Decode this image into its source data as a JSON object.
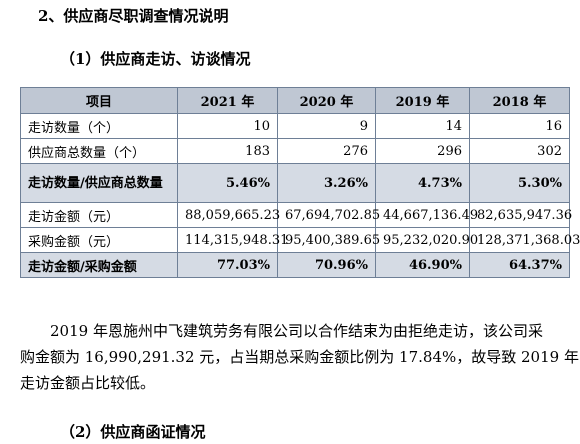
{
  "headings": {
    "section": "2、供应商尽职调查情况说明",
    "sub1": "（1）供应商走访、访谈情况",
    "sub2": "（2）供应商函证情况"
  },
  "table": {
    "headers": [
      "项目",
      "2021 年",
      "2020 年",
      "2019 年",
      "2018 年"
    ],
    "rows": [
      {
        "label": "走访数量（个）",
        "values": [
          "10",
          "9",
          "14",
          "16"
        ],
        "bold": false
      },
      {
        "label": "供应商总数量（个）",
        "values": [
          "183",
          "276",
          "296",
          "302"
        ],
        "bold": false
      },
      {
        "label": "走访数量/供应商总数量",
        "values": [
          "5.46%",
          "3.26%",
          "4.73%",
          "5.30%"
        ],
        "bold": true
      },
      {
        "label": "走访金额（元）",
        "values": [
          "88,059,665.23",
          "67,694,702.85",
          "44,667,136.49",
          "82,635,947.36"
        ],
        "bold": false
      },
      {
        "label": "采购金额（元）",
        "values": [
          "114,315,948.31",
          "95,400,389.65",
          "95,232,020.90",
          "128,371,368.03"
        ],
        "bold": false
      },
      {
        "label": "走访金额/采购金额",
        "values": [
          "77.03%",
          "70.96%",
          "46.90%",
          "64.37%"
        ],
        "bold": true
      }
    ]
  },
  "paragraph": {
    "line1": "2019 年恩施州中飞建筑劳务有限公司以合作结束为由拒绝走访，该公司采",
    "line2": "购金额为 16,990,291.32 元，占当期总采购金额比例为 17.84%，故导致 2019 年",
    "line3": "走访金额占比较低。"
  }
}
